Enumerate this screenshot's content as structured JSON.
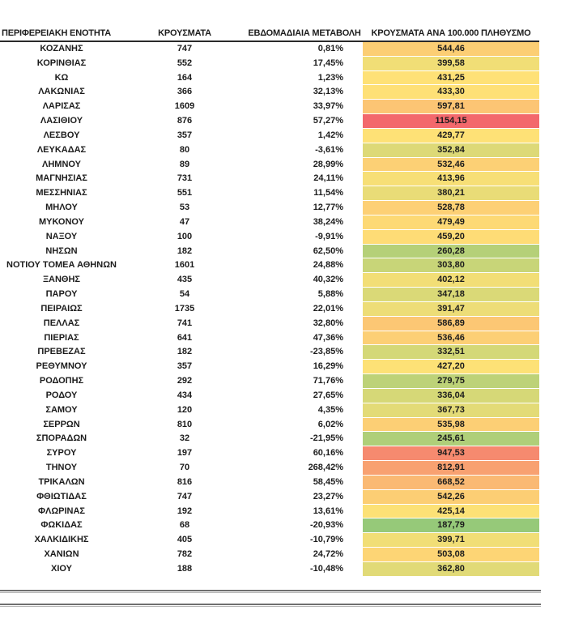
{
  "table": {
    "columns": [
      "ΠΕΡΙΦΕΡΕΙΑΚΗ ΕΝΟΤΗΤΑ",
      "ΚΡΟΥΣΜΑΤΑ",
      "ΕΒΔΟΜΑΔΙΑΙΑ ΜΕΤΑΒΟΛΗ",
      "ΚΡΟΥΣΜΑΤΑ ΑΝΑ 100.000 ΠΛΗΘΥΣΜΟ"
    ],
    "rows": [
      {
        "region": "ΚΟΖΑΝΗΣ",
        "cases": "747",
        "weekly_change": "0,81%",
        "per_100k": "544,46"
      },
      {
        "region": "ΚΟΡΙΝΘΙΑΣ",
        "cases": "552",
        "weekly_change": "17,45%",
        "per_100k": "399,58"
      },
      {
        "region": "ΚΩ",
        "cases": "164",
        "weekly_change": "1,23%",
        "per_100k": "431,25"
      },
      {
        "region": "ΛΑΚΩΝΙΑΣ",
        "cases": "366",
        "weekly_change": "32,13%",
        "per_100k": "433,30"
      },
      {
        "region": "ΛΑΡΙΣΑΣ",
        "cases": "1609",
        "weekly_change": "33,97%",
        "per_100k": "597,81"
      },
      {
        "region": "ΛΑΣΙΘΙΟΥ",
        "cases": "876",
        "weekly_change": "57,27%",
        "per_100k": "1154,15"
      },
      {
        "region": "ΛΕΣΒΟΥ",
        "cases": "357",
        "weekly_change": "1,42%",
        "per_100k": "429,77"
      },
      {
        "region": "ΛΕΥΚΑΔΑΣ",
        "cases": "80",
        "weekly_change": "-3,61%",
        "per_100k": "352,84"
      },
      {
        "region": "ΛΗΜΝΟΥ",
        "cases": "89",
        "weekly_change": "28,99%",
        "per_100k": "532,46"
      },
      {
        "region": "ΜΑΓΝΗΣΙΑΣ",
        "cases": "731",
        "weekly_change": "24,11%",
        "per_100k": "413,96"
      },
      {
        "region": "ΜΕΣΣΗΝΙΑΣ",
        "cases": "551",
        "weekly_change": "11,54%",
        "per_100k": "380,21"
      },
      {
        "region": "ΜΗΛΟΥ",
        "cases": "53",
        "weekly_change": "12,77%",
        "per_100k": "528,78"
      },
      {
        "region": "ΜΥΚΟΝΟΥ",
        "cases": "47",
        "weekly_change": "38,24%",
        "per_100k": "479,49"
      },
      {
        "region": "ΝΑΞΟΥ",
        "cases": "100",
        "weekly_change": "-9,91%",
        "per_100k": "459,20"
      },
      {
        "region": "ΝΗΣΩΝ",
        "cases": "182",
        "weekly_change": "62,50%",
        "per_100k": "260,28"
      },
      {
        "region": "ΝΟΤΙΟΥ ΤΟΜΕΑ ΑΘΗΝΩΝ",
        "cases": "1601",
        "weekly_change": "24,88%",
        "per_100k": "303,80"
      },
      {
        "region": "ΞΑΝΘΗΣ",
        "cases": "435",
        "weekly_change": "40,32%",
        "per_100k": "402,12"
      },
      {
        "region": "ΠΑΡΟΥ",
        "cases": "54",
        "weekly_change": "5,88%",
        "per_100k": "347,18"
      },
      {
        "region": "ΠΕΙΡΑΙΩΣ",
        "cases": "1735",
        "weekly_change": "22,01%",
        "per_100k": "391,47"
      },
      {
        "region": "ΠΕΛΛΑΣ",
        "cases": "741",
        "weekly_change": "32,80%",
        "per_100k": "586,89"
      },
      {
        "region": "ΠΙΕΡΙΑΣ",
        "cases": "641",
        "weekly_change": "47,36%",
        "per_100k": "536,46"
      },
      {
        "region": "ΠΡΕΒΕΖΑΣ",
        "cases": "182",
        "weekly_change": "-23,85%",
        "per_100k": "332,51"
      },
      {
        "region": "ΡΕΘΥΜΝΟΥ",
        "cases": "357",
        "weekly_change": "16,29%",
        "per_100k": "427,20"
      },
      {
        "region": "ΡΟΔΟΠΗΣ",
        "cases": "292",
        "weekly_change": "71,76%",
        "per_100k": "279,75"
      },
      {
        "region": "ΡΟΔΟΥ",
        "cases": "434",
        "weekly_change": "27,65%",
        "per_100k": "336,04"
      },
      {
        "region": "ΣΑΜΟΥ",
        "cases": "120",
        "weekly_change": "4,35%",
        "per_100k": "367,73"
      },
      {
        "region": "ΣΕΡΡΩΝ",
        "cases": "810",
        "weekly_change": "6,02%",
        "per_100k": "535,98"
      },
      {
        "region": "ΣΠΟΡΑΔΩΝ",
        "cases": "32",
        "weekly_change": "-21,95%",
        "per_100k": "245,61"
      },
      {
        "region": "ΣΥΡΟΥ",
        "cases": "197",
        "weekly_change": "60,16%",
        "per_100k": "947,53"
      },
      {
        "region": "ΤΗΝΟΥ",
        "cases": "70",
        "weekly_change": "268,42%",
        "per_100k": "812,91"
      },
      {
        "region": "ΤΡΙΚΑΛΩΝ",
        "cases": "816",
        "weekly_change": "58,45%",
        "per_100k": "668,52"
      },
      {
        "region": "ΦΘΙΩΤΙΔΑΣ",
        "cases": "747",
        "weekly_change": "23,27%",
        "per_100k": "542,26"
      },
      {
        "region": "ΦΛΩΡΙΝΑΣ",
        "cases": "192",
        "weekly_change": "13,61%",
        "per_100k": "425,14"
      },
      {
        "region": "ΦΩΚΙΔΑΣ",
        "cases": "68",
        "weekly_change": "-20,93%",
        "per_100k": "187,79"
      },
      {
        "region": "ΧΑΛΚΙΔΙΚΗΣ",
        "cases": "405",
        "weekly_change": "-10,79%",
        "per_100k": "399,71"
      },
      {
        "region": "ΧΑΝΙΩΝ",
        "cases": "782",
        "weekly_change": "24,72%",
        "per_100k": "503,08"
      },
      {
        "region": "ΧΙΟΥ",
        "cases": "188",
        "weekly_change": "-10,48%",
        "per_100k": "362,80"
      }
    ]
  },
  "heat_scale": {
    "description": "red-yellow-green conditional formatting on per-100k column",
    "anchors": [
      {
        "value": 70,
        "color": "#63BE7B"
      },
      {
        "value": 430,
        "color": "#FEE176"
      },
      {
        "value": 1170,
        "color": "#F3656C"
      }
    ]
  },
  "colors": {
    "text": "#1c1c1c",
    "header_underline": "#2a2a2a",
    "divider_dark": "#6f6f6f",
    "divider_light": "#b5b5b5",
    "background": "#ffffff"
  }
}
